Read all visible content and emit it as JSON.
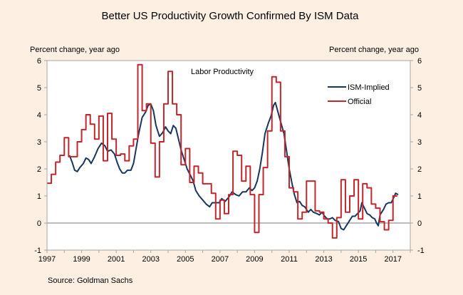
{
  "chart_data": {
    "type": "line",
    "title": "Better US Productivity Growth Confirmed By ISM Data",
    "annotation": "Labor Productivity",
    "ylabel_left": "Percent change, year ago",
    "ylabel_right": "Percent change, year ago",
    "xlabel": "",
    "source": "Source: Goldman Sachs",
    "xlim": [
      1997,
      2018
    ],
    "ylim": [
      -1,
      6
    ],
    "x_ticks": [
      "1997",
      "1999",
      "2001",
      "2003",
      "2005",
      "2007",
      "2009",
      "2011",
      "2013",
      "2015",
      "2017"
    ],
    "y_ticks": [
      "-1",
      "0",
      "1",
      "2",
      "3",
      "4",
      "5",
      "6"
    ],
    "legend_position": "top-right",
    "series": [
      {
        "name": "ISM-Implied",
        "color": "#17375e",
        "step": false,
        "points": [
          [
            1998.3,
            2.5
          ],
          [
            1998.45,
            2.25
          ],
          [
            1998.6,
            1.95
          ],
          [
            1998.75,
            1.9
          ],
          [
            1998.9,
            2.05
          ],
          [
            1999.1,
            2.2
          ],
          [
            1999.25,
            2.4
          ],
          [
            1999.4,
            2.35
          ],
          [
            1999.55,
            2.2
          ],
          [
            1999.75,
            2.45
          ],
          [
            1999.95,
            2.75
          ],
          [
            2000.15,
            2.95
          ],
          [
            2000.35,
            2.85
          ],
          [
            2000.5,
            2.65
          ],
          [
            2000.7,
            2.7
          ],
          [
            2000.9,
            2.55
          ],
          [
            2001.05,
            2.25
          ],
          [
            2001.2,
            2.0
          ],
          [
            2001.35,
            1.85
          ],
          [
            2001.5,
            1.85
          ],
          [
            2001.65,
            1.95
          ],
          [
            2001.85,
            1.95
          ],
          [
            2002.0,
            2.2
          ],
          [
            2002.15,
            2.75
          ],
          [
            2002.3,
            3.3
          ],
          [
            2002.5,
            3.9
          ],
          [
            2002.7,
            4.1
          ],
          [
            2002.85,
            4.35
          ],
          [
            2003.0,
            4.4
          ],
          [
            2003.15,
            4.15
          ],
          [
            2003.3,
            3.6
          ],
          [
            2003.5,
            3.2
          ],
          [
            2003.7,
            3.35
          ],
          [
            2003.85,
            3.55
          ],
          [
            2004.0,
            3.4
          ],
          [
            2004.15,
            3.3
          ],
          [
            2004.3,
            3.6
          ],
          [
            2004.45,
            3.5
          ],
          [
            2004.6,
            3.1
          ],
          [
            2004.75,
            2.7
          ],
          [
            2004.95,
            2.3
          ],
          [
            2005.1,
            2.0
          ],
          [
            2005.3,
            1.75
          ],
          [
            2005.45,
            1.55
          ],
          [
            2005.6,
            1.2
          ],
          [
            2005.8,
            1.0
          ],
          [
            2006.0,
            0.85
          ],
          [
            2006.2,
            0.7
          ],
          [
            2006.4,
            0.6
          ],
          [
            2006.55,
            0.75
          ],
          [
            2006.75,
            0.75
          ],
          [
            2006.95,
            0.75
          ],
          [
            2007.1,
            0.9
          ],
          [
            2007.3,
            0.8
          ],
          [
            2007.5,
            0.95
          ],
          [
            2007.7,
            1.15
          ],
          [
            2007.9,
            1.05
          ],
          [
            2008.1,
            1.0
          ],
          [
            2008.3,
            1.15
          ],
          [
            2008.5,
            1.15
          ],
          [
            2008.7,
            1.3
          ],
          [
            2008.85,
            1.2
          ],
          [
            2009.0,
            1.3
          ],
          [
            2009.15,
            1.55
          ],
          [
            2009.3,
            2.0
          ],
          [
            2009.45,
            2.6
          ],
          [
            2009.6,
            3.3
          ],
          [
            2009.8,
            3.7
          ],
          [
            2009.95,
            3.95
          ],
          [
            2010.1,
            4.35
          ],
          [
            2010.2,
            4.45
          ],
          [
            2010.35,
            4.1
          ],
          [
            2010.5,
            3.75
          ],
          [
            2010.7,
            3.3
          ],
          [
            2010.85,
            2.65
          ],
          [
            2011.0,
            2.0
          ],
          [
            2011.15,
            1.5
          ],
          [
            2011.3,
            1.05
          ],
          [
            2011.45,
            0.75
          ],
          [
            2011.6,
            0.8
          ],
          [
            2011.75,
            0.65
          ],
          [
            2011.9,
            0.6
          ],
          [
            2012.1,
            0.4
          ],
          [
            2012.25,
            0.5
          ],
          [
            2012.4,
            0.4
          ],
          [
            2012.6,
            0.35
          ],
          [
            2012.75,
            0.3
          ],
          [
            2012.9,
            0.4
          ],
          [
            2013.05,
            0.25
          ],
          [
            2013.2,
            0.15
          ],
          [
            2013.35,
            0.15
          ],
          [
            2013.5,
            0.2
          ],
          [
            2013.65,
            0.1
          ],
          [
            2013.85,
            0.05
          ],
          [
            2014.0,
            -0.2
          ],
          [
            2014.15,
            -0.25
          ],
          [
            2014.3,
            -0.1
          ],
          [
            2014.5,
            0.1
          ],
          [
            2014.65,
            0.25
          ],
          [
            2014.8,
            0.25
          ],
          [
            2014.95,
            0.35
          ],
          [
            2015.1,
            0.45
          ],
          [
            2015.2,
            0.75
          ],
          [
            2015.35,
            0.55
          ],
          [
            2015.5,
            0.35
          ],
          [
            2015.65,
            0.3
          ],
          [
            2015.8,
            0.2
          ],
          [
            2015.95,
            0.15
          ],
          [
            2016.05,
            0.0
          ],
          [
            2016.15,
            -0.1
          ],
          [
            2016.25,
            0.3
          ],
          [
            2016.45,
            0.5
          ],
          [
            2016.6,
            0.7
          ],
          [
            2016.75,
            0.75
          ],
          [
            2016.9,
            0.75
          ],
          [
            2017.05,
            0.95
          ],
          [
            2017.15,
            1.1
          ],
          [
            2017.3,
            1.05
          ]
        ]
      },
      {
        "name": "Official",
        "color": "#c0272d",
        "step": true,
        "points": [
          [
            1997.0,
            1.47
          ],
          [
            1997.25,
            1.8
          ],
          [
            1997.5,
            2.25
          ],
          [
            1997.75,
            2.5
          ],
          [
            1998.0,
            3.15
          ],
          [
            1998.25,
            2.45
          ],
          [
            1998.5,
            2.45
          ],
          [
            1998.75,
            3.0
          ],
          [
            1999.0,
            3.45
          ],
          [
            1999.25,
            4.0
          ],
          [
            1999.5,
            3.65
          ],
          [
            1999.75,
            3.1
          ],
          [
            2000.0,
            3.95
          ],
          [
            2000.25,
            2.3
          ],
          [
            2000.5,
            4.05
          ],
          [
            2000.75,
            3.1
          ],
          [
            2001.0,
            2.5
          ],
          [
            2001.25,
            2.55
          ],
          [
            2001.5,
            2.3
          ],
          [
            2001.75,
            2.85
          ],
          [
            2002.0,
            3.1
          ],
          [
            2002.25,
            5.85
          ],
          [
            2002.5,
            4.15
          ],
          [
            2002.75,
            4.4
          ],
          [
            2003.0,
            2.95
          ],
          [
            2003.25,
            1.7
          ],
          [
            2003.5,
            3.0
          ],
          [
            2003.75,
            4.4
          ],
          [
            2004.0,
            5.6
          ],
          [
            2004.25,
            4.4
          ],
          [
            2004.5,
            4.0
          ],
          [
            2004.75,
            2.15
          ],
          [
            2005.0,
            2.75
          ],
          [
            2005.25,
            1.5
          ],
          [
            2005.5,
            2.1
          ],
          [
            2005.75,
            1.85
          ],
          [
            2006.0,
            1.45
          ],
          [
            2006.25,
            1.45
          ],
          [
            2006.5,
            1.1
          ],
          [
            2006.75,
            0.15
          ],
          [
            2007.0,
            0.85
          ],
          [
            2007.25,
            0.35
          ],
          [
            2007.5,
            1.05
          ],
          [
            2007.75,
            2.65
          ],
          [
            2008.0,
            2.5
          ],
          [
            2008.25,
            1.55
          ],
          [
            2008.5,
            2.1
          ],
          [
            2008.75,
            1.05
          ],
          [
            2009.0,
            -0.35
          ],
          [
            2009.25,
            1.05
          ],
          [
            2009.5,
            2.05
          ],
          [
            2009.75,
            3.4
          ],
          [
            2010.0,
            5.4
          ],
          [
            2010.25,
            5.2
          ],
          [
            2010.5,
            3.4
          ],
          [
            2010.75,
            2.45
          ],
          [
            2011.0,
            1.3
          ],
          [
            2011.25,
            1.15
          ],
          [
            2011.5,
            0.15
          ],
          [
            2011.75,
            0.4
          ],
          [
            2012.0,
            1.55
          ],
          [
            2012.25,
            1.55
          ],
          [
            2012.5,
            0.45
          ],
          [
            2012.75,
            0.4
          ],
          [
            2013.0,
            0.15
          ],
          [
            2013.25,
            0.0
          ],
          [
            2013.5,
            -0.55
          ],
          [
            2013.75,
            0.2
          ],
          [
            2014.0,
            1.6
          ],
          [
            2014.25,
            0.4
          ],
          [
            2014.5,
            1.0
          ],
          [
            2014.75,
            1.6
          ],
          [
            2015.0,
            0.15
          ],
          [
            2015.25,
            1.45
          ],
          [
            2015.5,
            1.3
          ],
          [
            2015.75,
            0.7
          ],
          [
            2016.0,
            0.55
          ],
          [
            2016.25,
            0.05
          ],
          [
            2016.5,
            -0.25
          ],
          [
            2016.75,
            0.1
          ],
          [
            2017.0,
            1.0
          ],
          [
            2017.25,
            1.0
          ]
        ]
      }
    ]
  }
}
